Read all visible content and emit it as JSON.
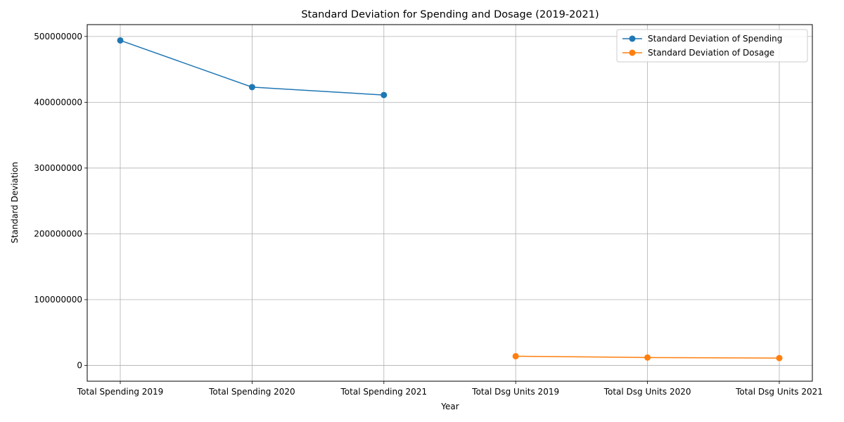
{
  "chart_data": {
    "type": "line",
    "title": "Standard Deviation for Spending and Dosage (2019-2021)",
    "xlabel": "Year",
    "ylabel": "Standard Deviation",
    "categories": [
      "Total Spending 2019",
      "Total Spending 2020",
      "Total Spending 2021",
      "Total Dsg Units 2019",
      "Total Dsg Units 2020",
      "Total Dsg Units 2021"
    ],
    "yticks": [
      0,
      100000000,
      200000000,
      300000000,
      400000000,
      500000000
    ],
    "ytick_labels": [
      "0",
      "100000000",
      "200000000",
      "300000000",
      "400000000",
      "500000000"
    ],
    "ylim": [
      -24000000,
      518000000
    ],
    "grid": true,
    "legend_position": "top-right",
    "series": [
      {
        "name": "Standard Deviation of Spending",
        "color": "#1f77b4",
        "x": [
          "Total Spending 2019",
          "Total Spending 2020",
          "Total Spending 2021"
        ],
        "values": [
          494000000,
          423000000,
          411000000
        ]
      },
      {
        "name": "Standard Deviation of Dosage",
        "color": "#ff7f0e",
        "x": [
          "Total Dsg Units 2019",
          "Total Dsg Units 2020",
          "Total Dsg Units 2021"
        ],
        "values": [
          14000000,
          12000000,
          11200000
        ]
      }
    ]
  }
}
